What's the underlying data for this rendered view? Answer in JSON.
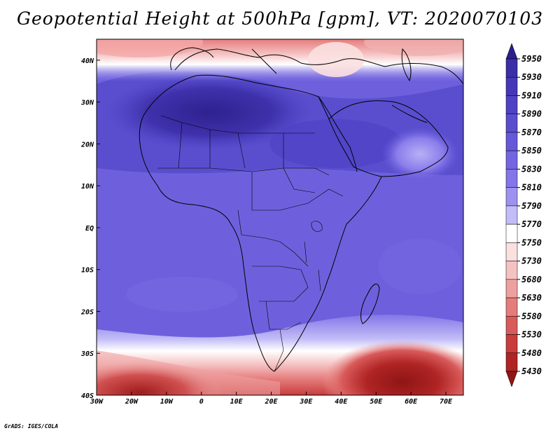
{
  "title": "Geopotential Height at 500hPa [gpm], VT: 2020070103",
  "footer": "GrADS: IGES/COLA",
  "map": {
    "lon_range": [
      -30,
      75
    ],
    "lat_range": [
      -40,
      45
    ],
    "x_ticks": [
      "30W",
      "20W",
      "10W",
      "0",
      "10E",
      "20E",
      "30E",
      "40E",
      "50E",
      "60E",
      "70E"
    ],
    "x_tick_values": [
      -30,
      -20,
      -10,
      0,
      10,
      20,
      30,
      40,
      50,
      60,
      70
    ],
    "y_ticks": [
      "40S",
      "30S",
      "20S",
      "10S",
      "EQ",
      "10N",
      "20N",
      "30N",
      "40N"
    ],
    "y_tick_values": [
      -40,
      -30,
      -20,
      -10,
      0,
      10,
      20,
      30,
      40
    ]
  },
  "colorbar": {
    "labels": [
      "5950",
      "5930",
      "5910",
      "5890",
      "5870",
      "5850",
      "5830",
      "5810",
      "5790",
      "5770",
      "5750",
      "5730",
      "5680",
      "5630",
      "5580",
      "5530",
      "5480",
      "5430"
    ],
    "colors": [
      "#2a1d8e",
      "#3b2ea6",
      "#4637b8",
      "#4f42c4",
      "#5a4ecf",
      "#6659d8",
      "#7466e0",
      "#8475e8",
      "#9d92f0",
      "#c2bcf7",
      "#ffffff",
      "#fbe0e0",
      "#f5c2c2",
      "#eea0a0",
      "#e57c7c",
      "#d95a5a",
      "#c93c3c",
      "#b02424",
      "#8f1515"
    ]
  }
}
